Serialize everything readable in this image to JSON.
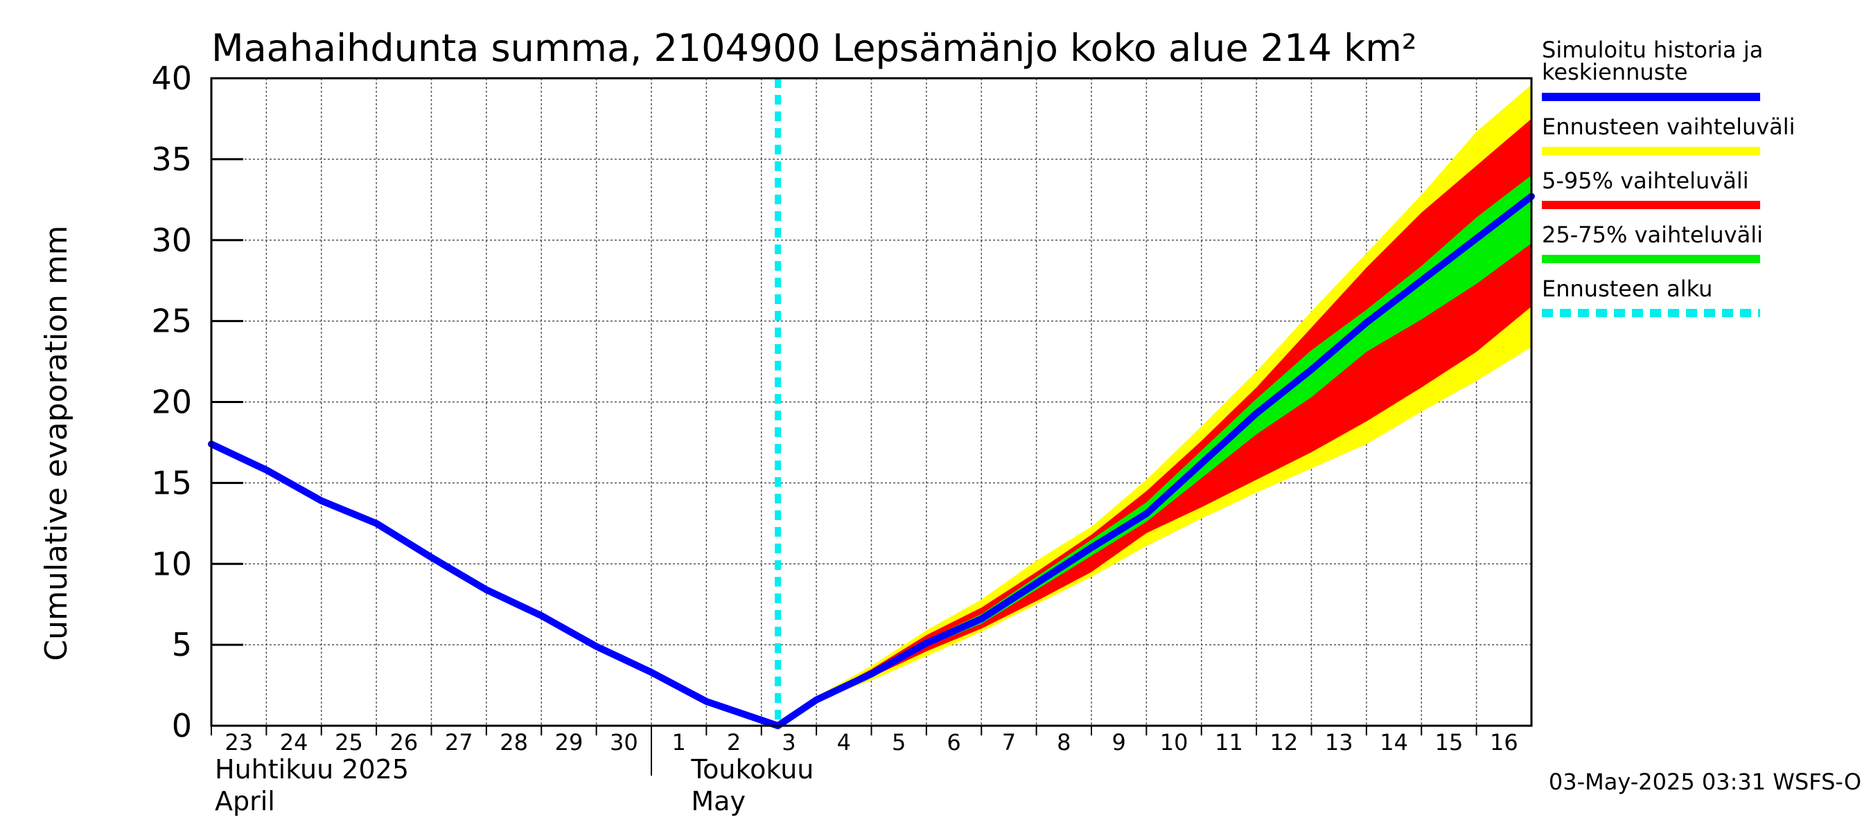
{
  "chart_data": {
    "type": "line",
    "title": "Maahaihdunta summa, 2104900 Lepsämänjo koko alue 214 km²",
    "ylabel": "Cumulative evaporation   mm",
    "ylim": [
      0,
      40
    ],
    "yticks": [
      0,
      5,
      10,
      15,
      20,
      25,
      30,
      35,
      40
    ],
    "x_tick_labels": [
      "23",
      "24",
      "25",
      "26",
      "27",
      "28",
      "29",
      "30",
      "1",
      "2",
      "3",
      "4",
      "5",
      "6",
      "7",
      "8",
      "9",
      "10",
      "11",
      "12",
      "13",
      "14",
      "15",
      "16"
    ],
    "month_labels": [
      {
        "line1": "Huhtikuu  2025",
        "line2": "April"
      },
      {
        "line1": "Toukokuu",
        "line2": "May"
      }
    ],
    "grid": true,
    "forecast_start_day": 10.3,
    "series": [
      {
        "name": "Simuloitu historia ja keskiennuste",
        "color": "#0000ff",
        "points": [
          [
            0,
            17.4
          ],
          [
            1,
            15.8
          ],
          [
            2,
            13.9
          ],
          [
            3,
            12.5
          ],
          [
            4,
            10.4
          ],
          [
            5,
            8.4
          ],
          [
            6,
            6.8
          ],
          [
            7,
            4.9
          ],
          [
            8,
            3.3
          ],
          [
            9,
            1.5
          ],
          [
            10.3,
            0
          ],
          [
            11,
            1.6
          ],
          [
            12,
            3.2
          ],
          [
            13,
            5.1
          ],
          [
            14,
            6.6
          ],
          [
            15,
            8.8
          ],
          [
            16,
            11.0
          ],
          [
            17,
            13.1
          ],
          [
            18,
            16.2
          ],
          [
            19,
            19.3
          ],
          [
            20,
            22.0
          ],
          [
            21,
            24.9
          ],
          [
            22,
            27.5
          ],
          [
            23,
            30.1
          ],
          [
            24,
            32.7
          ]
        ]
      }
    ],
    "bands": [
      {
        "name": "Ennusteen vaihteluväli",
        "color": "#ffff00",
        "x": [
          11,
          12,
          13,
          14,
          15,
          16,
          17,
          18,
          19,
          20,
          21,
          22,
          23,
          24
        ],
        "low": [
          1.6,
          2.8,
          4.3,
          5.8,
          7.5,
          9.2,
          11.1,
          12.8,
          14.4,
          15.9,
          17.4,
          19.4,
          21.3,
          23.4
        ],
        "high": [
          1.8,
          3.7,
          5.9,
          7.8,
          10.2,
          12.3,
          15.2,
          18.5,
          21.9,
          25.6,
          29.2,
          32.8,
          36.7,
          39.6
        ]
      },
      {
        "name": "5-95% vaihteluväli",
        "color": "#ff0000",
        "x": [
          11,
          12,
          13,
          14,
          15,
          16,
          17,
          18,
          19,
          20,
          21,
          22,
          23,
          24
        ],
        "low": [
          1.6,
          3.0,
          4.6,
          6.0,
          7.7,
          9.5,
          11.9,
          13.5,
          15.2,
          16.9,
          18.8,
          20.9,
          23.1,
          25.9
        ],
        "high": [
          1.7,
          3.5,
          5.6,
          7.3,
          9.5,
          11.8,
          14.5,
          17.6,
          20.9,
          24.6,
          28.3,
          31.7,
          34.6,
          37.5
        ]
      },
      {
        "name": "25-75% vaihteluväli",
        "color": "#00ee00",
        "x": [
          11,
          12,
          13,
          14,
          15,
          16,
          17,
          18,
          19,
          20,
          21,
          22,
          23,
          24
        ],
        "low": [
          1.6,
          3.1,
          4.9,
          6.3,
          8.4,
          10.5,
          12.6,
          15.3,
          18.0,
          20.3,
          23.1,
          25.1,
          27.3,
          29.8
        ],
        "high": [
          1.7,
          3.3,
          5.3,
          6.9,
          9.2,
          11.5,
          13.8,
          17.0,
          20.2,
          23.2,
          25.7,
          28.4,
          31.4,
          34.0
        ]
      }
    ],
    "legend": {
      "placement": "right",
      "items": [
        {
          "label": "Simuloitu historia ja",
          "label2": "keskiennuste",
          "color": "#0000ff",
          "style": "solid"
        },
        {
          "label": "Ennusteen vaihteluväli",
          "color": "#ffff00",
          "style": "solid"
        },
        {
          "label": "5-95% vaihteluväli",
          "color": "#ff0000",
          "style": "solid"
        },
        {
          "label": "25-75% vaihteluväli",
          "color": "#00ee00",
          "style": "solid"
        },
        {
          "label": "Ennusteen alku",
          "color": "#00eeee",
          "style": "dashed"
        }
      ]
    },
    "footer": "03-May-2025 03:31 WSFS-O"
  }
}
